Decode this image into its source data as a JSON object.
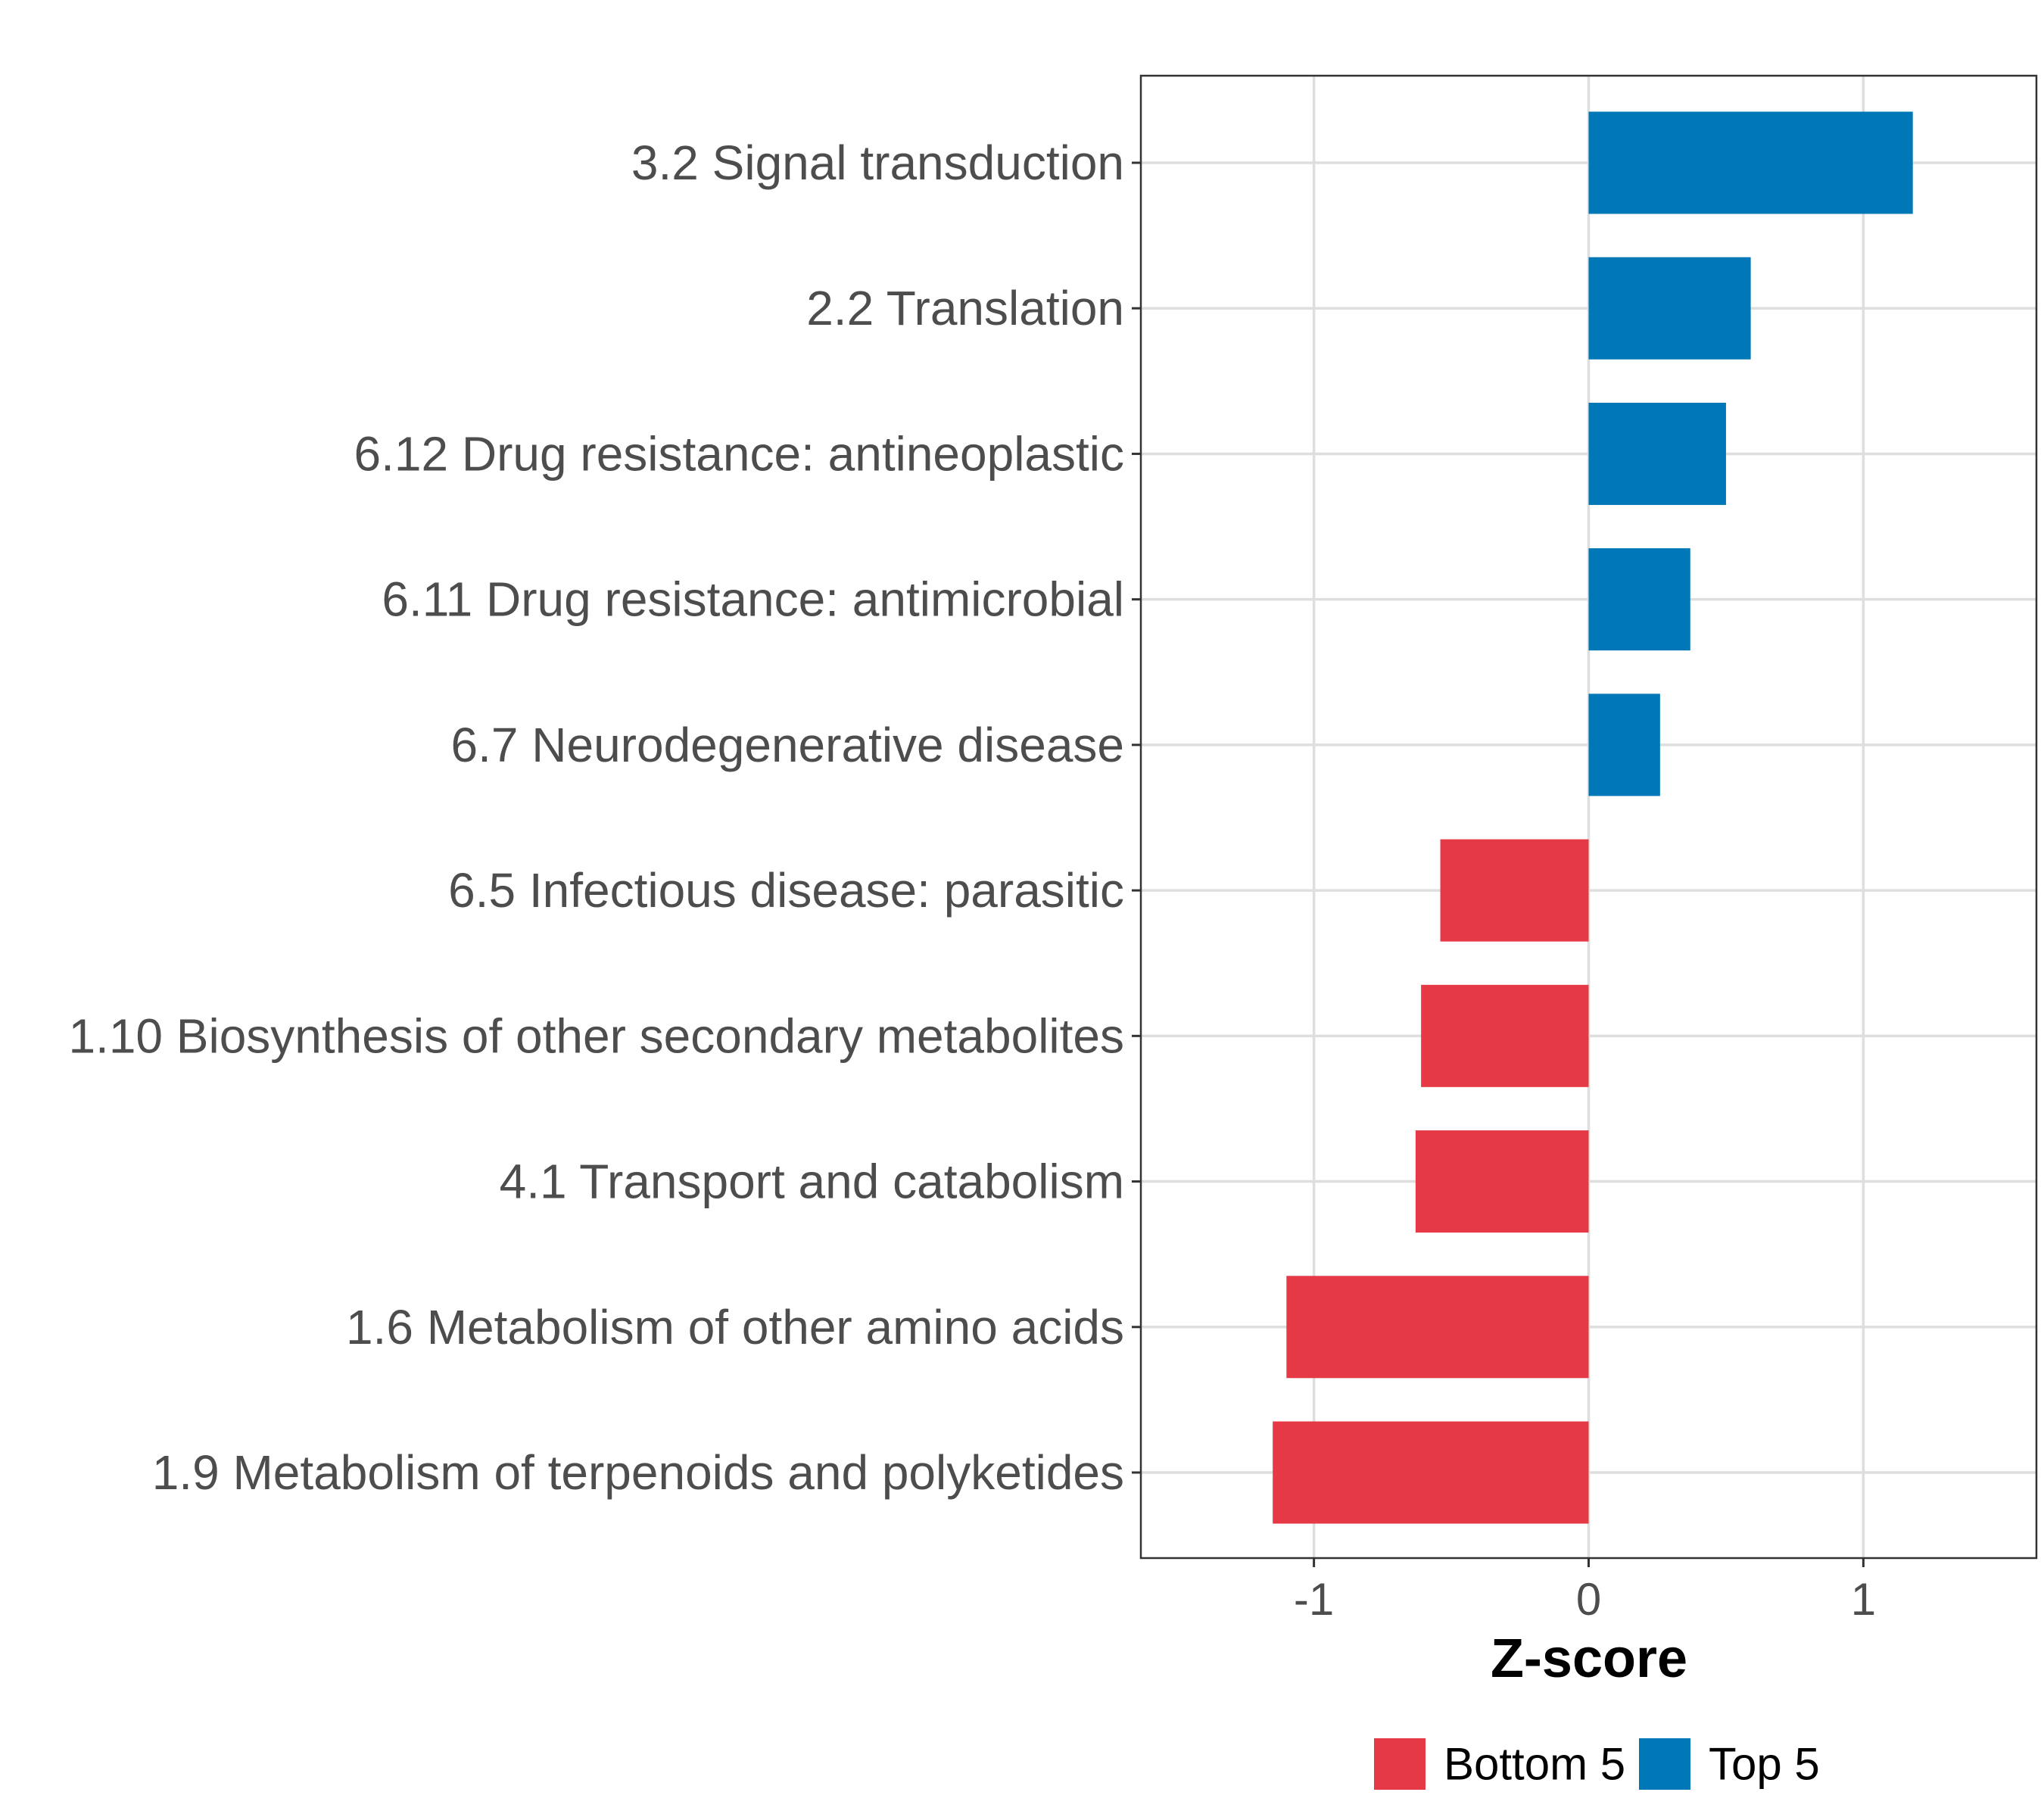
{
  "chart_data": {
    "type": "bar",
    "orientation": "horizontal",
    "title": "",
    "xlabel": "Z-score",
    "ylabel": "",
    "xlim": [
      -1.63,
      1.63
    ],
    "xticks": [
      -1,
      0,
      1
    ],
    "xtick_labels": [
      "-1",
      "0",
      "1"
    ],
    "grid": true,
    "legend_position": "bottom",
    "categories": [
      "3.2 Signal transduction",
      "2.2 Translation",
      "6.12 Drug resistance: antineoplastic",
      "6.11 Drug resistance: antimicrobial",
      "6.7 Neurodegenerative disease",
      "6.5 Infectious disease: parasitic",
      "1.10 Biosynthesis of other secondary metabolites",
      "4.1 Transport and catabolism",
      "1.6 Metabolism of other amino acids",
      "1.9 Metabolism of terpenoids and polyketides"
    ],
    "values": [
      1.18,
      0.59,
      0.5,
      0.37,
      0.26,
      -0.54,
      -0.61,
      -0.63,
      -1.1,
      -1.15
    ],
    "groups": [
      "Top 5",
      "Top 5",
      "Top 5",
      "Top 5",
      "Top 5",
      "Bottom 5",
      "Bottom 5",
      "Bottom 5",
      "Bottom 5",
      "Bottom 5"
    ],
    "legend": [
      {
        "name": "Bottom 5",
        "color": "#e63946"
      },
      {
        "name": "Top 5",
        "color": "#0077b6"
      }
    ]
  }
}
